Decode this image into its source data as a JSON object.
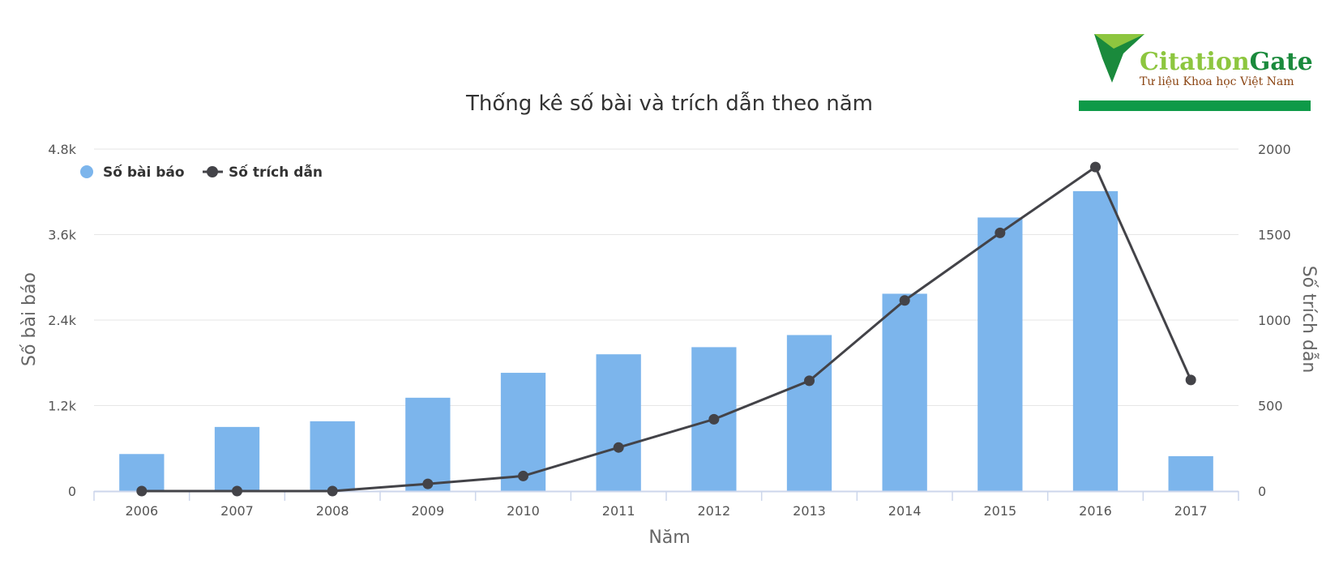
{
  "logo": {
    "text_citation": "Citation",
    "text_gate": "Gate",
    "tagline": "Tư liệu Khoa học Việt Nam",
    "colors": {
      "citation": "#8dc63f",
      "gate": "#1a8a3c",
      "tagline": "#8b4513",
      "bar": "#0e9a48"
    }
  },
  "chart_data": {
    "type": "bar",
    "title": "Thống kê số bài và trích dẫn theo năm",
    "xlabel": "Năm",
    "categories": [
      "2006",
      "2007",
      "2008",
      "2009",
      "2010",
      "2011",
      "2012",
      "2013",
      "2014",
      "2015",
      "2016",
      "2017"
    ],
    "y_left": {
      "label": "Số bài báo",
      "range": [
        0,
        4800
      ],
      "ticks": [
        0,
        1200,
        2400,
        3600,
        4800
      ],
      "tick_labels": [
        "0",
        "1.2k",
        "2.4k",
        "3.6k",
        "4.8k"
      ]
    },
    "y_right": {
      "label": "Số trích dẫn",
      "range": [
        0,
        2000
      ],
      "ticks": [
        0,
        500,
        1000,
        1500,
        2000
      ],
      "tick_labels": [
        "0",
        "500",
        "1000",
        "1500",
        "2000"
      ]
    },
    "series": [
      {
        "name": "Số bài báo",
        "type": "bar",
        "axis": "left",
        "color": "#7cb5ec",
        "values": [
          520,
          900,
          980,
          1310,
          1660,
          1920,
          2020,
          2190,
          2770,
          3840,
          4210,
          490
        ]
      },
      {
        "name": "Số trích dẫn",
        "type": "line",
        "axis": "right",
        "color": "#434348",
        "values": [
          0,
          0,
          0,
          42,
          88,
          255,
          420,
          645,
          1115,
          1510,
          1895,
          650
        ]
      }
    ],
    "grid": true,
    "legend_position": "top-left"
  }
}
